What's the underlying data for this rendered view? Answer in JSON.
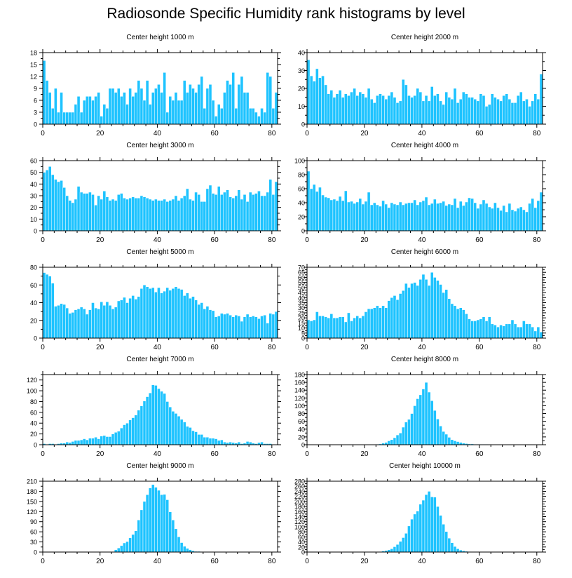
{
  "title": "Radiosonde Specific Humidity rank histograms by level",
  "colors": {
    "bar": "#1EC3FF",
    "bar_edge": "#ffffff",
    "axis": "#000000"
  },
  "chart_data": [
    {
      "type": "bar",
      "title": "Center height 1000 m",
      "xlim": [
        0,
        82
      ],
      "ylim": [
        0,
        18
      ],
      "xticks": [
        0,
        20,
        40,
        60,
        80
      ],
      "yticks": [
        0,
        3,
        6,
        9,
        12,
        15,
        18
      ],
      "ytick_side": "left",
      "values": [
        16,
        11,
        8,
        4,
        9,
        3,
        8,
        3,
        3,
        3,
        3,
        5,
        7,
        3,
        6,
        7,
        7,
        6,
        7,
        8,
        2,
        5,
        4,
        9,
        9,
        8,
        9,
        7,
        8,
        5,
        9,
        7,
        8,
        11,
        9,
        6,
        11,
        5,
        8,
        9,
        10,
        8,
        13,
        3,
        7,
        6,
        8,
        6,
        6,
        11,
        8,
        10,
        9,
        8,
        10,
        12,
        4,
        9,
        10,
        6,
        2,
        5,
        4,
        8,
        11,
        10,
        13,
        4,
        10,
        12,
        8,
        8,
        4,
        4,
        3,
        2,
        4,
        3,
        13,
        12,
        4,
        8
      ]
    },
    {
      "type": "bar",
      "title": "Center height 2000 m",
      "xlim": [
        0,
        82
      ],
      "ylim": [
        0,
        40
      ],
      "xticks": [
        0,
        20,
        40,
        60,
        80
      ],
      "yticks": [
        0,
        10,
        20,
        30,
        40
      ],
      "ytick_side": "right",
      "values": [
        36,
        27,
        24,
        31,
        26,
        27,
        22,
        17,
        19,
        15,
        17,
        19,
        15,
        17,
        16,
        18,
        20,
        16,
        18,
        17,
        15,
        20,
        14,
        12,
        16,
        17,
        16,
        14,
        16,
        18,
        15,
        12,
        13,
        25,
        22,
        16,
        15,
        16,
        20,
        18,
        13,
        16,
        13,
        21,
        16,
        17,
        13,
        11,
        18,
        15,
        14,
        20,
        12,
        14,
        18,
        17,
        15,
        15,
        14,
        13,
        17,
        16,
        10,
        11,
        17,
        15,
        14,
        13,
        16,
        17,
        14,
        12,
        12,
        16,
        18,
        13,
        14,
        10,
        13,
        17,
        14,
        28
      ]
    },
    {
      "type": "bar",
      "title": "Center height 3000 m",
      "xlim": [
        0,
        82
      ],
      "ylim": [
        0,
        60
      ],
      "xticks": [
        0,
        20,
        40,
        60,
        80
      ],
      "yticks": [
        0,
        10,
        20,
        30,
        40,
        50,
        60
      ],
      "ytick_side": "left",
      "values": [
        50,
        52,
        55,
        48,
        44,
        42,
        43,
        37,
        30,
        26,
        24,
        27,
        38,
        33,
        32,
        32,
        33,
        31,
        22,
        30,
        27,
        34,
        29,
        26,
        27,
        26,
        31,
        32,
        28,
        27,
        28,
        29,
        28,
        28,
        30,
        29,
        28,
        27,
        26,
        27,
        26,
        26,
        27,
        25,
        26,
        27,
        30,
        26,
        28,
        30,
        36,
        27,
        26,
        33,
        31,
        25,
        25,
        36,
        39,
        32,
        31,
        38,
        31,
        33,
        35,
        29,
        28,
        30,
        35,
        27,
        31,
        25,
        33,
        31,
        32,
        34,
        30,
        30,
        33,
        44,
        31,
        42
      ]
    },
    {
      "type": "bar",
      "title": "Center height 4000 m",
      "xlim": [
        0,
        82
      ],
      "ylim": [
        0,
        100
      ],
      "xticks": [
        0,
        20,
        40,
        60,
        80
      ],
      "yticks": [
        0,
        20,
        40,
        60,
        80,
        100
      ],
      "ytick_side": "right",
      "values": [
        85,
        60,
        66,
        56,
        62,
        51,
        48,
        47,
        44,
        45,
        43,
        49,
        43,
        57,
        41,
        42,
        39,
        41,
        46,
        38,
        42,
        55,
        37,
        40,
        37,
        35,
        43,
        38,
        33,
        40,
        38,
        37,
        41,
        37,
        39,
        40,
        40,
        44,
        37,
        41,
        43,
        48,
        37,
        39,
        45,
        39,
        40,
        42,
        36,
        38,
        37,
        46,
        33,
        42,
        36,
        41,
        47,
        46,
        40,
        32,
        38,
        44,
        39,
        34,
        32,
        40,
        33,
        29,
        36,
        27,
        39,
        30,
        28,
        32,
        34,
        30,
        27,
        39,
        46,
        33,
        43,
        55
      ]
    },
    {
      "type": "bar",
      "title": "Center height 5000 m",
      "xlim": [
        0,
        82
      ],
      "ylim": [
        0,
        80
      ],
      "xticks": [
        0,
        20,
        40,
        60,
        80
      ],
      "yticks": [
        0,
        20,
        40,
        60,
        80
      ],
      "ytick_side": "left",
      "values": [
        74,
        72,
        70,
        62,
        36,
        37,
        39,
        38,
        34,
        28,
        29,
        32,
        33,
        35,
        33,
        27,
        32,
        40,
        34,
        33,
        41,
        37,
        41,
        37,
        33,
        35,
        42,
        43,
        46,
        40,
        45,
        48,
        44,
        47,
        56,
        60,
        58,
        56,
        57,
        52,
        57,
        51,
        53,
        57,
        54,
        56,
        58,
        56,
        55,
        48,
        51,
        45,
        47,
        43,
        38,
        40,
        33,
        36,
        32,
        31,
        24,
        25,
        28,
        27,
        28,
        26,
        24,
        26,
        25,
        19,
        24,
        27,
        24,
        25,
        24,
        22,
        25,
        26,
        17,
        28,
        27,
        30
      ]
    },
    {
      "type": "bar",
      "title": "Center height 6000 m",
      "xlim": [
        0,
        82
      ],
      "ylim": [
        0,
        70
      ],
      "xticks": [
        0,
        20,
        40,
        60,
        80
      ],
      "yticks": [
        0,
        5,
        10,
        15,
        20,
        25,
        30,
        35,
        40,
        45,
        50,
        55,
        60,
        65,
        70
      ],
      "ytick_side": "right",
      "values": [
        18,
        17,
        18,
        26,
        22,
        22,
        21,
        20,
        24,
        20,
        20,
        21,
        21,
        16,
        25,
        17,
        20,
        22,
        20,
        22,
        26,
        29,
        29,
        30,
        32,
        30,
        32,
        30,
        37,
        40,
        42,
        38,
        44,
        47,
        54,
        50,
        54,
        55,
        52,
        58,
        63,
        58,
        52,
        65,
        60,
        57,
        53,
        45,
        48,
        39,
        34,
        32,
        29,
        30,
        28,
        24,
        19,
        17,
        17,
        18,
        19,
        21,
        17,
        21,
        14,
        13,
        11,
        13,
        12,
        14,
        14,
        18,
        14,
        11,
        11,
        17,
        14,
        14,
        11,
        7,
        11,
        6
      ]
    },
    {
      "type": "bar",
      "title": "Center height 7000 m",
      "xlim": [
        0,
        82
      ],
      "ylim": [
        0,
        130
      ],
      "xticks": [
        0,
        20,
        40,
        60,
        80
      ],
      "yticks": [
        0,
        20,
        40,
        60,
        80,
        100,
        120
      ],
      "ytick_side": "left",
      "values": [
        2,
        1,
        2,
        2,
        1,
        2,
        3,
        3,
        5,
        4,
        6,
        8,
        8,
        9,
        11,
        9,
        12,
        12,
        14,
        11,
        16,
        17,
        15,
        15,
        20,
        23,
        25,
        31,
        37,
        40,
        46,
        50,
        55,
        64,
        72,
        81,
        89,
        96,
        111,
        110,
        104,
        99,
        95,
        80,
        70,
        62,
        58,
        53,
        47,
        42,
        34,
        32,
        26,
        24,
        19,
        19,
        14,
        14,
        12,
        12,
        11,
        8,
        9,
        5,
        4,
        5,
        4,
        3,
        5,
        2,
        3,
        6,
        5,
        3,
        2,
        4,
        5,
        2,
        2,
        2,
        1,
        1
      ]
    },
    {
      "type": "bar",
      "title": "Center height 8000 m",
      "xlim": [
        0,
        82
      ],
      "ylim": [
        0,
        180
      ],
      "xticks": [
        0,
        20,
        40,
        60,
        80
      ],
      "yticks": [
        0,
        20,
        40,
        60,
        80,
        100,
        120,
        140,
        160,
        180
      ],
      "ytick_side": "right",
      "values": [
        0,
        0,
        0,
        0,
        0,
        0,
        0,
        0,
        0,
        0,
        0,
        0,
        0,
        0,
        0,
        0,
        0,
        0,
        0,
        0,
        0,
        0,
        0,
        0,
        1,
        2,
        4,
        6,
        10,
        13,
        18,
        25,
        30,
        45,
        58,
        65,
        80,
        100,
        118,
        128,
        143,
        160,
        135,
        113,
        88,
        66,
        48,
        34,
        27,
        19,
        13,
        10,
        8,
        6,
        4,
        3,
        2,
        2,
        1,
        1,
        1,
        1,
        1,
        0,
        0,
        0,
        0,
        0,
        0,
        0,
        0,
        0,
        0,
        0,
        0,
        0,
        0,
        0,
        0,
        0,
        0,
        0
      ]
    },
    {
      "type": "bar",
      "title": "Center height 9000 m",
      "xlim": [
        0,
        82
      ],
      "ylim": [
        0,
        210
      ],
      "xticks": [
        0,
        20,
        40,
        60,
        80
      ],
      "yticks": [
        0,
        30,
        60,
        90,
        120,
        150,
        180,
        210
      ],
      "ytick_side": "left",
      "values": [
        0,
        0,
        0,
        0,
        0,
        0,
        0,
        0,
        0,
        0,
        0,
        0,
        0,
        0,
        0,
        0,
        0,
        0,
        0,
        0,
        0,
        0,
        0,
        0,
        0,
        7,
        12,
        19,
        27,
        31,
        42,
        52,
        63,
        95,
        125,
        150,
        170,
        190,
        200,
        192,
        183,
        170,
        171,
        155,
        119,
        95,
        69,
        45,
        28,
        17,
        11,
        7,
        4,
        2,
        2,
        1,
        1,
        1,
        0,
        0,
        0,
        0,
        0,
        0,
        0,
        0,
        0,
        0,
        0,
        0,
        0,
        0,
        0,
        0,
        0,
        0,
        0,
        0,
        0,
        0,
        0,
        0
      ]
    },
    {
      "type": "bar",
      "title": "Center height 10000 m",
      "xlim": [
        0,
        82
      ],
      "ylim": [
        0,
        280
      ],
      "xticks": [
        0,
        20,
        40,
        60,
        80
      ],
      "yticks": [
        0,
        20,
        40,
        60,
        80,
        100,
        120,
        140,
        160,
        180,
        200,
        220,
        240,
        260,
        280
      ],
      "ytick_side": "right",
      "values": [
        0,
        0,
        0,
        0,
        0,
        0,
        0,
        0,
        0,
        0,
        0,
        0,
        0,
        0,
        0,
        0,
        0,
        0,
        0,
        0,
        0,
        0,
        0,
        0,
        0,
        2,
        4,
        6,
        9,
        13,
        21,
        30,
        42,
        57,
        74,
        103,
        130,
        150,
        162,
        189,
        205,
        227,
        240,
        218,
        217,
        180,
        145,
        110,
        81,
        55,
        37,
        22,
        13,
        8,
        5,
        3,
        2,
        1,
        1,
        0,
        0,
        0,
        0,
        0,
        0,
        0,
        0,
        0,
        0,
        0,
        0,
        0,
        0,
        0,
        0,
        0,
        0,
        0,
        0,
        0,
        0,
        0
      ]
    }
  ]
}
